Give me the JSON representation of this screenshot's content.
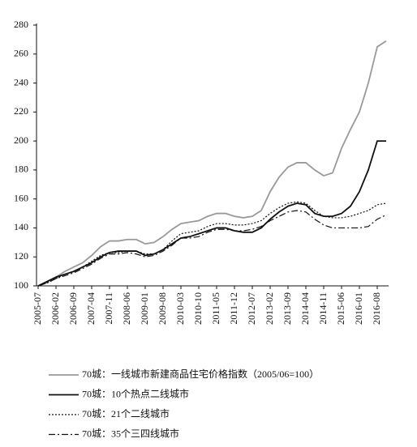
{
  "chart_data": {
    "type": "line",
    "categories": [
      "2005-07",
      null,
      "2006-02",
      null,
      "2006-09",
      null,
      "2007-04",
      null,
      "2007-11",
      null,
      "2008-06",
      null,
      "2009-01",
      null,
      "2009-08",
      null,
      "2010-03",
      null,
      "2010-10",
      null,
      "2011-05",
      null,
      "2011-12",
      null,
      "2012-07",
      null,
      "2013-02",
      null,
      "2013-09",
      null,
      "2014-04",
      null,
      "2014-11",
      null,
      "2015-06",
      null,
      "2016-01",
      null,
      "2016-08",
      null
    ],
    "series": [
      {
        "name": "70城：一线城市新建商品住宅价格指数（2005/06=100）",
        "color": "#999999",
        "dash": "none",
        "width": 1.8,
        "values": [
          100,
          103,
          106,
          110,
          113,
          116,
          121,
          127,
          131,
          131,
          132,
          132,
          129,
          130,
          134,
          139,
          143,
          144,
          145,
          148,
          150,
          150,
          148,
          147,
          148,
          152,
          165,
          175,
          182,
          185,
          185,
          180,
          176,
          178,
          195,
          208,
          220,
          240,
          265,
          269
        ]
      },
      {
        "name": "70城：10个热点二线城市",
        "color": "#111111",
        "dash": "none",
        "width": 1.8,
        "values": [
          100,
          103,
          106,
          108,
          110,
          113,
          116,
          120,
          123,
          124,
          124,
          124,
          121,
          122,
          125,
          129,
          133,
          134,
          136,
          138,
          140,
          140,
          138,
          137,
          137,
          140,
          146,
          151,
          155,
          157,
          156,
          150,
          148,
          148,
          150,
          155,
          165,
          180,
          200,
          200
        ]
      },
      {
        "name": "70城：21个二线城市",
        "color": "#111111",
        "dash": "2,2",
        "width": 1.2,
        "values": [
          100,
          102,
          105,
          108,
          110,
          113,
          117,
          121,
          123,
          123,
          124,
          124,
          122,
          122,
          125,
          131,
          136,
          137,
          138,
          141,
          143,
          143,
          142,
          142,
          143,
          145,
          150,
          154,
          157,
          158,
          157,
          152,
          148,
          147,
          147,
          148,
          150,
          152,
          156,
          157
        ]
      },
      {
        "name": "70城：35个三四线城市",
        "color": "#111111",
        "dash": "8,3,2,3",
        "width": 1.2,
        "values": [
          100,
          102,
          105,
          107,
          109,
          112,
          115,
          119,
          122,
          122,
          123,
          122,
          120,
          121,
          124,
          128,
          133,
          133,
          134,
          137,
          139,
          139,
          138,
          138,
          139,
          141,
          145,
          148,
          151,
          152,
          151,
          146,
          142,
          140,
          140,
          140,
          140,
          141,
          146,
          149
        ]
      }
    ],
    "ylim": [
      100,
      280
    ],
    "yticks": [
      100,
      120,
      140,
      160,
      180,
      200,
      220,
      240,
      260,
      280
    ],
    "grid": false
  }
}
